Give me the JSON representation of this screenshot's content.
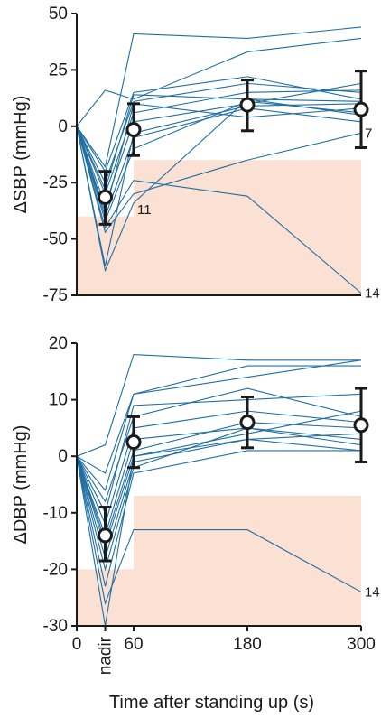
{
  "chart_data": [
    {
      "type": "line",
      "ylabel": "ΔSBP (mmHg)",
      "ylim": [
        -75,
        50
      ],
      "yticks": [
        "50",
        "25",
        "0",
        "-25",
        "-50",
        "-75"
      ],
      "xlim": [
        0,
        300
      ],
      "x_positions": [
        0,
        30,
        60,
        180,
        300
      ],
      "shaded_region": [
        {
          "x": 0,
          "y": -40
        },
        {
          "x": 60,
          "y": -40
        },
        {
          "x": 60,
          "y": -15
        },
        {
          "x": 300,
          "y": -15
        }
      ],
      "subjects": [
        [
          0,
          -18,
          41,
          39,
          44
        ],
        [
          0,
          16,
          12,
          33,
          39
        ],
        [
          0,
          -20,
          15,
          22,
          12
        ],
        [
          0,
          -25,
          11,
          19,
          15
        ],
        [
          0,
          -28,
          14,
          12,
          11
        ],
        [
          0,
          -30,
          6,
          15,
          16
        ],
        [
          0,
          -35,
          2,
          10,
          19
        ],
        [
          0,
          -38,
          10,
          4,
          8
        ],
        [
          0,
          -40,
          -5,
          8,
          2
        ],
        [
          0,
          -42,
          -10,
          11,
          6
        ],
        [
          0,
          -45,
          -24,
          -31,
          -74
        ],
        [
          0,
          -47,
          -30,
          -15,
          -3
        ],
        [
          0,
          -62,
          -3,
          9,
          10
        ],
        [
          0,
          -64,
          -34,
          12,
          5
        ]
      ],
      "mean": [
        {
          "x": 30,
          "mean": -31.5,
          "sd_low": -43.5,
          "sd_high": -20
        },
        {
          "x": 60,
          "mean": -1.5,
          "sd_low": -13,
          "sd_high": 10
        },
        {
          "x": 180,
          "mean": 9.5,
          "sd_low": -2,
          "sd_high": 20.5
        },
        {
          "x": 300,
          "mean": 7.5,
          "sd_low": -9.5,
          "sd_high": 24.5
        }
      ],
      "annotations": [
        {
          "text": "11",
          "x": 60,
          "y": -37
        },
        {
          "text": "7",
          "x": 300,
          "y": -3
        },
        {
          "text": "14",
          "x": 300,
          "y": -74
        }
      ]
    },
    {
      "type": "line",
      "ylabel": "ΔDBP (mmHg)",
      "xlabel": "Time after standing up (s)",
      "ylim": [
        -30,
        20
      ],
      "yticks": [
        "20",
        "10",
        "0",
        "-10",
        "-20",
        "-30"
      ],
      "xlim": [
        0,
        300
      ],
      "x_positions": [
        0,
        30,
        60,
        180,
        300
      ],
      "xticks": [
        {
          "x": 0,
          "label": "0"
        },
        {
          "x": 30,
          "label": "nadir"
        },
        {
          "x": 60,
          "label": "60"
        },
        {
          "x": 180,
          "label": "180"
        },
        {
          "x": 300,
          "label": "300"
        }
      ],
      "shaded_region": [
        {
          "x": 0,
          "y": -20
        },
        {
          "x": 60,
          "y": -20
        },
        {
          "x": 60,
          "y": -7
        },
        {
          "x": 300,
          "y": -7
        }
      ],
      "subjects": [
        [
          0,
          2,
          18,
          17,
          17
        ],
        [
          0,
          -3,
          11,
          16,
          16
        ],
        [
          0,
          -6,
          11,
          14,
          17
        ],
        [
          0,
          -8,
          7,
          12,
          7
        ],
        [
          0,
          -10,
          9,
          10,
          11
        ],
        [
          0,
          -12,
          5,
          8,
          6
        ],
        [
          0,
          -14,
          3,
          5,
          3
        ],
        [
          0,
          -15,
          1,
          6,
          5
        ],
        [
          0,
          -16,
          0,
          4,
          8
        ],
        [
          0,
          -18,
          -1,
          3,
          4
        ],
        [
          0,
          -20,
          -2,
          5,
          2
        ],
        [
          0,
          -23,
          -3,
          1,
          1
        ],
        [
          0,
          -26,
          -13,
          -13,
          -24
        ],
        [
          0,
          -30,
          0,
          3,
          1
        ]
      ],
      "mean": [
        {
          "x": 30,
          "mean": -14,
          "sd_low": -18.5,
          "sd_high": -9
        },
        {
          "x": 60,
          "mean": 2.5,
          "sd_low": -2,
          "sd_high": 7
        },
        {
          "x": 180,
          "mean": 6,
          "sd_low": 1.5,
          "sd_high": 10.5
        },
        {
          "x": 300,
          "mean": 5.5,
          "sd_low": -1,
          "sd_high": 12
        }
      ],
      "annotations": [
        {
          "text": "14",
          "x": 300,
          "y": -24
        }
      ]
    }
  ],
  "colors": {
    "line": "#1f6fa3",
    "shade": "#fbe0d4",
    "mean": "#1a1a1a"
  }
}
